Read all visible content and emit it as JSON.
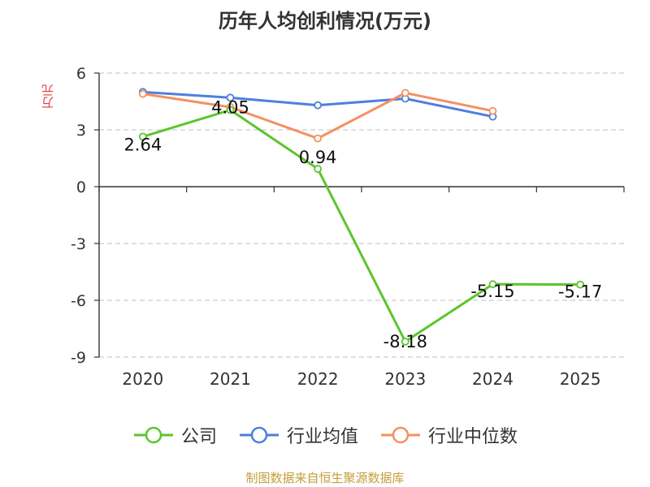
{
  "title": "历年人均创利情况(万元)",
  "y_unit": "万元",
  "source": "制图数据来自恒生聚源数据库",
  "chart_data": {
    "type": "line",
    "categories": [
      "2020",
      "2021",
      "2022",
      "2023",
      "2024",
      "2025"
    ],
    "ylim": [
      -9,
      6
    ],
    "yticks": [
      6,
      3,
      0,
      -3,
      -6,
      -9
    ],
    "grid": true,
    "legend_position": "bottom",
    "series": [
      {
        "name": "公司",
        "color": "#5cc52d",
        "values": [
          2.64,
          4.05,
          0.94,
          -8.18,
          -5.15,
          -5.17
        ],
        "labels": [
          "2.64",
          "4.05",
          "0.94",
          "-8.18",
          "-5.15",
          "-5.17"
        ]
      },
      {
        "name": "行业均值",
        "color": "#4e7fde",
        "values": [
          5.0,
          4.7,
          4.3,
          4.65,
          3.7,
          null
        ]
      },
      {
        "name": "行业中位数",
        "color": "#f59063",
        "values": [
          4.9,
          4.2,
          2.55,
          4.95,
          4.0,
          null
        ]
      }
    ]
  }
}
